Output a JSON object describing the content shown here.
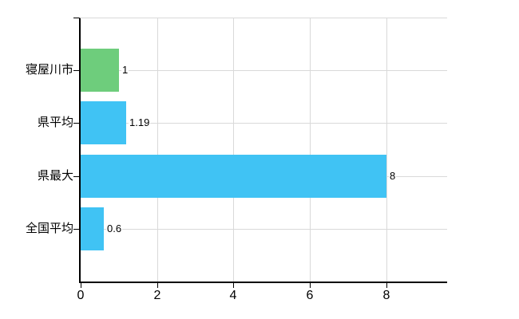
{
  "chart_data": {
    "type": "bar",
    "orientation": "horizontal",
    "title": "",
    "categories": [
      "寝屋川市",
      "県平均",
      "県最大",
      "全国平均"
    ],
    "values": [
      1,
      1.19,
      8,
      0.6
    ],
    "value_labels": [
      "1",
      "1.19",
      "8",
      "0.6"
    ],
    "bar_colors": [
      "#6ecd7c",
      "#40c3f4",
      "#40c3f4",
      "#40c3f4"
    ],
    "xlim": [
      0,
      9.6
    ],
    "xticks": [
      0,
      2,
      4,
      6,
      8
    ],
    "xtick_labels": [
      "0",
      "2",
      "4",
      "6",
      "8"
    ],
    "grid": true,
    "legend": false,
    "colors": {
      "grid": "#d9d9d9",
      "axis": "#000000",
      "text": "#000000",
      "background": "#ffffff",
      "highlight_bar": "#6ecd7c",
      "default_bar": "#40c3f4"
    }
  }
}
